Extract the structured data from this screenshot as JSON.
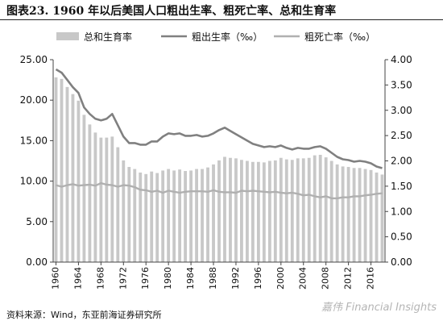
{
  "figure": {
    "title": "图表23. 1960 年以后美国人口粗出生率、粗死亡率、总和生育率",
    "source": "资料来源：Wind，东亚前海证券研究所",
    "watermark": "嘉伟 Financial Insights"
  },
  "chart_data": {
    "type": "bar",
    "x": [
      1960,
      1961,
      1962,
      1963,
      1964,
      1965,
      1966,
      1967,
      1968,
      1969,
      1970,
      1971,
      1972,
      1973,
      1974,
      1975,
      1976,
      1977,
      1978,
      1979,
      1980,
      1981,
      1982,
      1983,
      1984,
      1985,
      1986,
      1987,
      1988,
      1989,
      1990,
      1991,
      1992,
      1993,
      1994,
      1995,
      1996,
      1997,
      1998,
      1999,
      2000,
      2001,
      2002,
      2003,
      2004,
      2005,
      2006,
      2007,
      2008,
      2009,
      2010,
      2011,
      2012,
      2013,
      2014,
      2015,
      2016,
      2017,
      2018
    ],
    "x_ticks": [
      1960,
      1964,
      1968,
      1972,
      1976,
      1980,
      1984,
      1988,
      1992,
      1996,
      2000,
      2004,
      2008,
      2012,
      2016
    ],
    "series": [
      {
        "name": "总和生育率",
        "type": "bar",
        "axis": "right",
        "color": "#c8c8c8",
        "values": [
          3.65,
          3.62,
          3.46,
          3.32,
          3.19,
          2.91,
          2.72,
          2.56,
          2.46,
          2.46,
          2.48,
          2.27,
          2.01,
          1.88,
          1.84,
          1.77,
          1.74,
          1.79,
          1.76,
          1.81,
          1.84,
          1.81,
          1.83,
          1.8,
          1.81,
          1.84,
          1.84,
          1.87,
          1.93,
          2.01,
          2.08,
          2.06,
          2.05,
          2.02,
          2.0,
          1.98,
          1.98,
          1.97,
          2.0,
          2.01,
          2.06,
          2.03,
          2.02,
          2.05,
          2.05,
          2.06,
          2.11,
          2.12,
          2.07,
          2.0,
          1.93,
          1.89,
          1.88,
          1.86,
          1.86,
          1.84,
          1.82,
          1.77,
          1.73
        ]
      },
      {
        "name": "粗出生率（‰）",
        "type": "line",
        "axis": "left",
        "color": "#808080",
        "values": [
          23.8,
          23.4,
          22.5,
          21.6,
          20.9,
          19.1,
          18.3,
          17.7,
          17.5,
          17.7,
          18.3,
          16.9,
          15.5,
          14.7,
          14.7,
          14.5,
          14.5,
          14.9,
          14.9,
          15.5,
          15.9,
          15.8,
          15.9,
          15.6,
          15.6,
          15.7,
          15.5,
          15.6,
          15.9,
          16.3,
          16.6,
          16.2,
          15.8,
          15.4,
          15.0,
          14.6,
          14.4,
          14.2,
          14.3,
          14.2,
          14.4,
          14.1,
          13.9,
          14.1,
          14.0,
          14.0,
          14.2,
          14.3,
          14.0,
          13.5,
          13.0,
          12.7,
          12.6,
          12.4,
          12.5,
          12.4,
          12.2,
          11.8,
          11.6
        ]
      },
      {
        "name": "粗死亡率（‰）",
        "type": "line",
        "axis": "right",
        "color": "#b0b0b0",
        "values": [
          1.52,
          1.49,
          1.52,
          1.54,
          1.51,
          1.52,
          1.53,
          1.51,
          1.56,
          1.53,
          1.52,
          1.49,
          1.52,
          1.51,
          1.48,
          1.43,
          1.42,
          1.39,
          1.41,
          1.37,
          1.41,
          1.39,
          1.37,
          1.39,
          1.4,
          1.4,
          1.4,
          1.39,
          1.42,
          1.39,
          1.38,
          1.38,
          1.37,
          1.41,
          1.4,
          1.41,
          1.4,
          1.39,
          1.38,
          1.39,
          1.37,
          1.36,
          1.37,
          1.35,
          1.32,
          1.33,
          1.3,
          1.28,
          1.3,
          1.26,
          1.26,
          1.28,
          1.28,
          1.3,
          1.3,
          1.32,
          1.33,
          1.35,
          1.36
        ]
      }
    ],
    "y_left": {
      "min": 0,
      "max": 25,
      "ticks": [
        "0.00",
        "5.00",
        "10.00",
        "15.00",
        "20.00",
        "25.00"
      ]
    },
    "y_right": {
      "min": 0,
      "max": 4,
      "ticks": [
        "0.00",
        "0.50",
        "1.00",
        "1.50",
        "2.00",
        "2.50",
        "3.00",
        "3.50",
        "4.00"
      ]
    },
    "grid": false,
    "legend_position": "top"
  }
}
